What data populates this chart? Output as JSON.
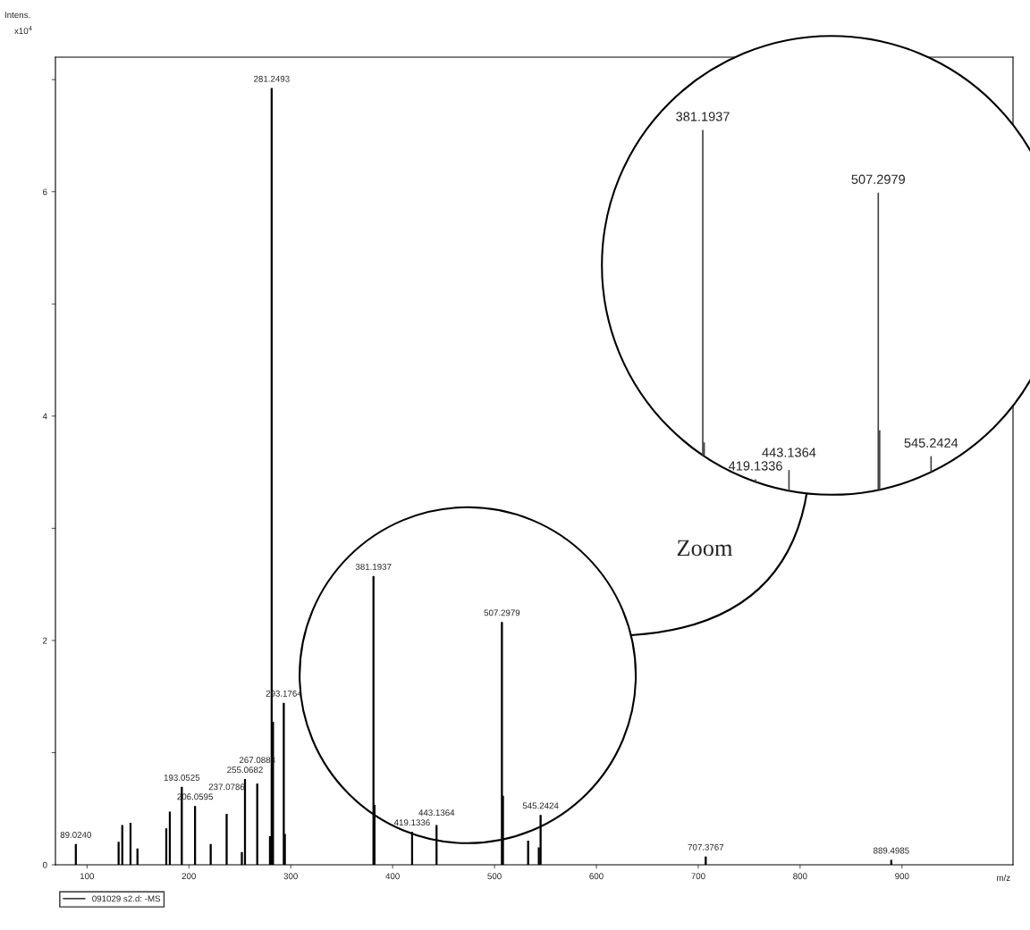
{
  "chart_data": {
    "type": "bar",
    "xlabel": "m/z",
    "x": [
      89.02,
      131,
      134.6,
      142.7,
      149.5,
      177.8,
      181.3,
      193.05,
      206.06,
      221.4,
      237.08,
      252,
      255.07,
      267.09,
      279.6,
      281.25,
      282.6,
      293.18,
      294.2,
      381.19,
      382.2,
      419.13,
      443.14,
      507.3,
      508.3,
      533,
      543.5,
      545.24,
      707.38,
      889.5
    ],
    "series": [
      {
        "name": "091029 s2.d: -MS",
        "color": "#000000",
        "values": [
          0.18,
          0.2,
          0.35,
          0.37,
          0.14,
          0.32,
          0.47,
          0.69,
          0.52,
          0.18,
          0.45,
          0.11,
          0.76,
          0.72,
          0.25,
          6.92,
          1.27,
          1.44,
          0.27,
          2.57,
          0.53,
          0.29,
          0.35,
          2.16,
          0.61,
          0.21,
          0.15,
          0.44,
          0.07,
          0.04
        ]
      }
    ],
    "xlim": [
      69,
      1009
    ],
    "ylim": [
      0,
      7.2
    ],
    "xticks": [
      100,
      200,
      300,
      400,
      500,
      600,
      700,
      800,
      900
    ],
    "yticks": [
      0,
      {
        "value": 1,
        "label": null
      },
      2,
      {
        "value": 3,
        "label": null
      },
      4,
      {
        "value": 5,
        "label": null
      },
      6,
      {
        "value": 7,
        "label": null
      }
    ],
    "legend": "bottom",
    "annotations": [
      {
        "text": "89.0240",
        "x": 89.02,
        "y": 0.18
      },
      {
        "text": "193.0525",
        "x": 193.05,
        "y": 0.69
      },
      {
        "text": "206.0595",
        "x": 206.06,
        "y": 0.52
      },
      {
        "text": "237.0786",
        "x": 237.08,
        "y": 0.45
      },
      {
        "text": "255.0682",
        "x": 255.07,
        "y": 0.76
      },
      {
        "text": "267.0883",
        "x": 267.09,
        "y": 0.72
      },
      {
        "text": "281.2493",
        "x": 281.25,
        "y": 6.92
      },
      {
        "text": "293.1764",
        "x": 293.18,
        "y": 1.44
      },
      {
        "text": "381.1937",
        "x": 381.19,
        "y": 2.57
      },
      {
        "text": "419.1336",
        "x": 419.13,
        "y": 0.29
      },
      {
        "text": "443.1364",
        "x": 443.14,
        "y": 0.35
      },
      {
        "text": "507.2979",
        "x": 507.3,
        "y": 2.16
      },
      {
        "text": "545.2424",
        "x": 545.24,
        "y": 0.44
      },
      {
        "text": "707.3767",
        "x": 707.38,
        "y": 0.07
      },
      {
        "text": "889.4985",
        "x": 889.5,
        "y": 0.04
      },
      "Intens.",
      "x10$^{4}$",
      "Zoom"
    ]
  }
}
